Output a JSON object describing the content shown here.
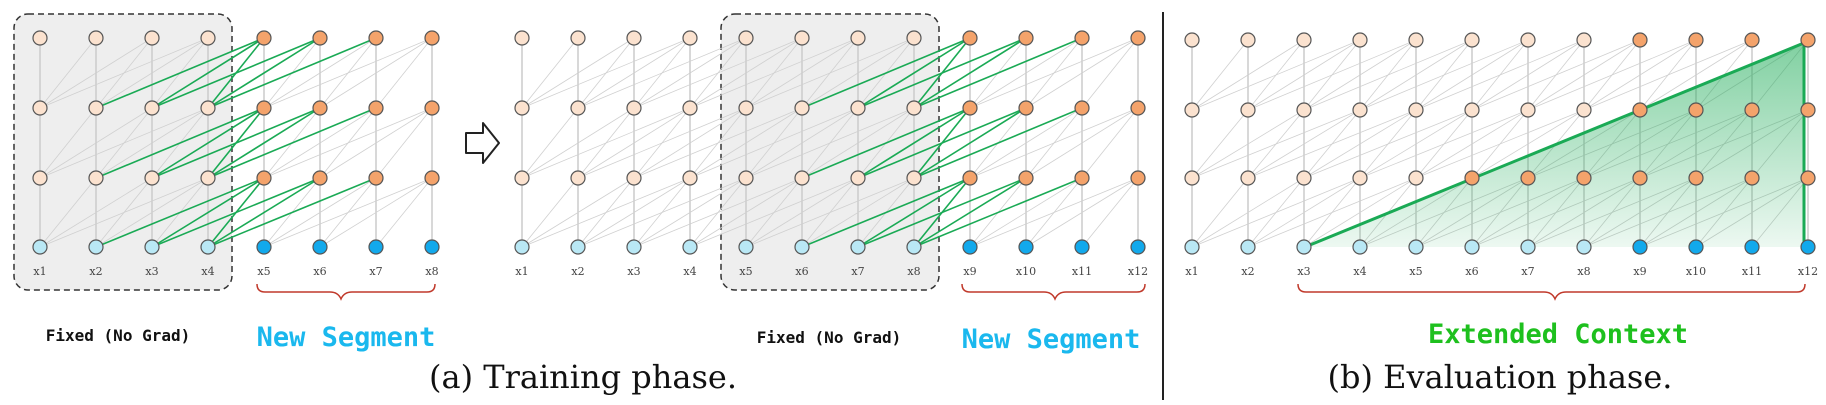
{
  "colors": {
    "hidden_old": "#fbe2cf",
    "hidden_new": "#f4a36b",
    "input_old": "#b9e8f5",
    "input_new": "#12a9ec",
    "node_stroke": "#555555",
    "edge_gray": "#d0d0d0",
    "edge_green": "#1aaa55",
    "segment_label": "#1ab8ee",
    "context_label": "#1ec01e",
    "brace": "#c0392b",
    "shade_fill": "#eeeeee"
  },
  "panel_a": {
    "step1": {
      "x_labels": [
        "x1",
        "x2",
        "x3",
        "x4",
        "x5",
        "x6",
        "x7",
        "x8"
      ],
      "fixed_label": "Fixed (No Grad)",
      "new_label": "New Segment"
    },
    "step2": {
      "x_labels": [
        "x1",
        "x2",
        "x3",
        "x4",
        "x5",
        "x6",
        "x7",
        "x8",
        "x9",
        "x10",
        "x11",
        "x12"
      ],
      "fixed_label": "Fixed (No Grad)",
      "new_label": "New Segment"
    },
    "caption": "(a) Training phase."
  },
  "panel_b": {
    "x_labels": [
      "x1",
      "x2",
      "x3",
      "x4",
      "x5",
      "x6",
      "x7",
      "x8",
      "x9",
      "x10",
      "x11",
      "x12"
    ],
    "context_label": "Extended Context",
    "caption": "(b) Evaluation phase."
  }
}
